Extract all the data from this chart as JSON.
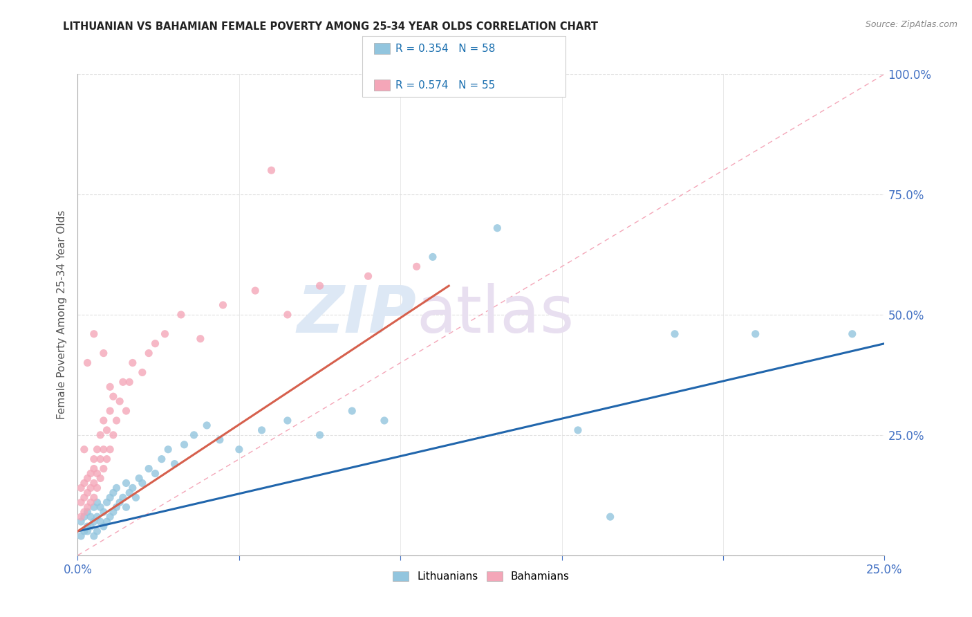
{
  "title": "LITHUANIAN VS BAHAMIAN FEMALE POVERTY AMONG 25-34 YEAR OLDS CORRELATION CHART",
  "source": "Source: ZipAtlas.com",
  "ylabel": "Female Poverty Among 25-34 Year Olds",
  "xlim": [
    0.0,
    0.25
  ],
  "ylim": [
    0.0,
    1.0
  ],
  "lithuanian_color": "#92c5de",
  "bahamian_color": "#f4a6b8",
  "trend_lithuanian_color": "#2166ac",
  "trend_bahamian_color": "#d6604d",
  "ref_line_color": "#f4a6b8",
  "lit_trend_x": [
    0.0,
    0.25
  ],
  "lit_trend_y": [
    0.05,
    0.44
  ],
  "bah_trend_x": [
    0.0,
    0.115
  ],
  "bah_trend_y": [
    0.05,
    0.56
  ],
  "lit_x": [
    0.001,
    0.001,
    0.002,
    0.002,
    0.003,
    0.003,
    0.003,
    0.004,
    0.004,
    0.005,
    0.005,
    0.005,
    0.006,
    0.006,
    0.006,
    0.007,
    0.007,
    0.008,
    0.008,
    0.009,
    0.009,
    0.01,
    0.01,
    0.011,
    0.011,
    0.012,
    0.012,
    0.013,
    0.014,
    0.015,
    0.015,
    0.016,
    0.017,
    0.018,
    0.019,
    0.02,
    0.022,
    0.024,
    0.026,
    0.028,
    0.03,
    0.033,
    0.036,
    0.04,
    0.044,
    0.05,
    0.057,
    0.065,
    0.075,
    0.085,
    0.095,
    0.11,
    0.13,
    0.155,
    0.185,
    0.21,
    0.24,
    0.165
  ],
  "lit_y": [
    0.04,
    0.07,
    0.05,
    0.08,
    0.05,
    0.06,
    0.09,
    0.06,
    0.08,
    0.04,
    0.07,
    0.1,
    0.05,
    0.08,
    0.11,
    0.07,
    0.1,
    0.06,
    0.09,
    0.07,
    0.11,
    0.08,
    0.12,
    0.09,
    0.13,
    0.1,
    0.14,
    0.11,
    0.12,
    0.1,
    0.15,
    0.13,
    0.14,
    0.12,
    0.16,
    0.15,
    0.18,
    0.17,
    0.2,
    0.22,
    0.19,
    0.23,
    0.25,
    0.27,
    0.24,
    0.22,
    0.26,
    0.28,
    0.25,
    0.3,
    0.28,
    0.62,
    0.68,
    0.26,
    0.46,
    0.46,
    0.46,
    0.08
  ],
  "bah_x": [
    0.001,
    0.001,
    0.001,
    0.002,
    0.002,
    0.002,
    0.003,
    0.003,
    0.003,
    0.004,
    0.004,
    0.004,
    0.005,
    0.005,
    0.005,
    0.005,
    0.006,
    0.006,
    0.006,
    0.007,
    0.007,
    0.007,
    0.008,
    0.008,
    0.008,
    0.009,
    0.009,
    0.01,
    0.01,
    0.011,
    0.011,
    0.012,
    0.013,
    0.014,
    0.015,
    0.016,
    0.017,
    0.02,
    0.022,
    0.024,
    0.027,
    0.032,
    0.038,
    0.045,
    0.055,
    0.065,
    0.075,
    0.09,
    0.105,
    0.06,
    0.002,
    0.003,
    0.005,
    0.008,
    0.01
  ],
  "bah_y": [
    0.08,
    0.11,
    0.14,
    0.09,
    0.12,
    0.15,
    0.1,
    0.13,
    0.16,
    0.11,
    0.14,
    0.17,
    0.12,
    0.15,
    0.18,
    0.2,
    0.14,
    0.17,
    0.22,
    0.16,
    0.2,
    0.25,
    0.18,
    0.22,
    0.28,
    0.2,
    0.26,
    0.22,
    0.3,
    0.25,
    0.33,
    0.28,
    0.32,
    0.36,
    0.3,
    0.36,
    0.4,
    0.38,
    0.42,
    0.44,
    0.46,
    0.5,
    0.45,
    0.52,
    0.55,
    0.5,
    0.56,
    0.58,
    0.6,
    0.8,
    0.22,
    0.4,
    0.46,
    0.42,
    0.35
  ],
  "watermark_zip": "ZIP",
  "watermark_atlas": "atlas",
  "background_color": "#ffffff",
  "grid_color": "#e0e0e0",
  "tick_color": "#4472c4",
  "label_color": "#555555"
}
